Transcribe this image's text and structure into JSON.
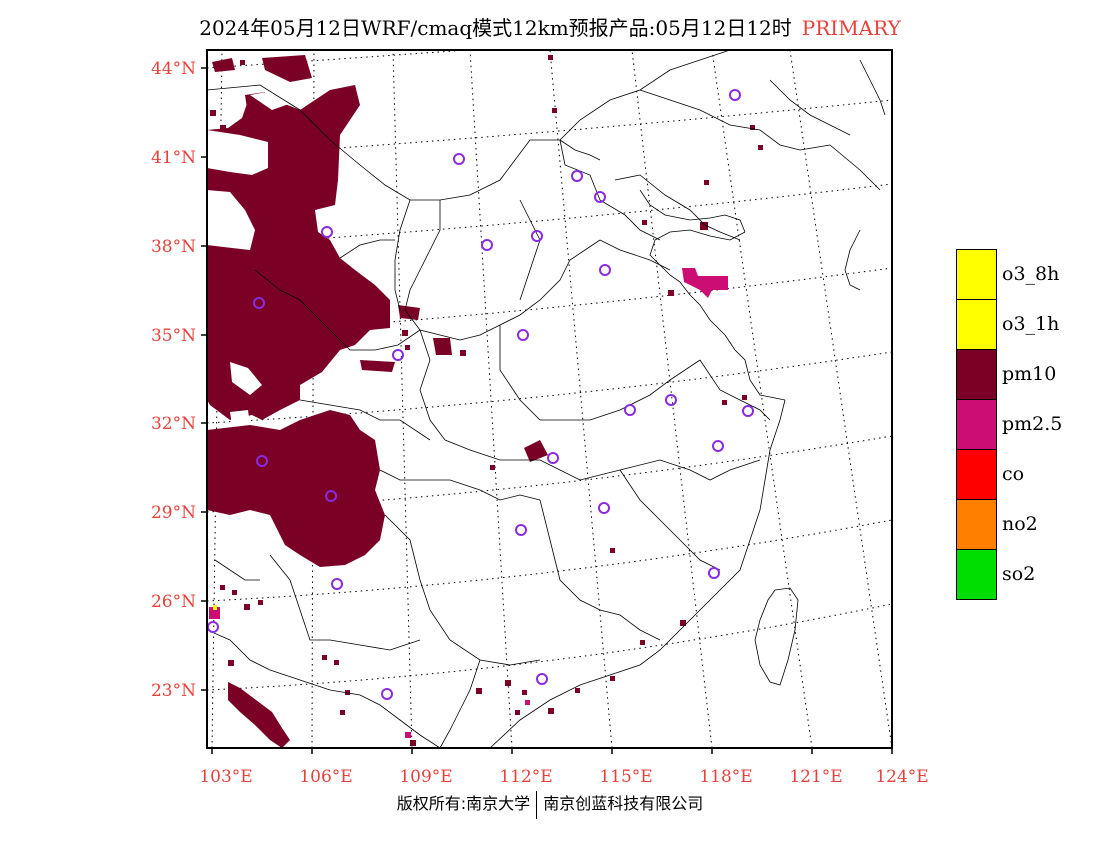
{
  "header": {
    "title": "2024年05月12日WRF/cmaq模式12km预报产品:05月12日12时",
    "tag": "PRIMARY"
  },
  "map": {
    "lat_labels": [
      "44°N",
      "41°N",
      "38°N",
      "35°N",
      "32°N",
      "29°N",
      "26°N",
      "23°N"
    ],
    "lon_labels": [
      "103°E",
      "106°E",
      "109°E",
      "112°E",
      "115°E",
      "118°E",
      "121°E",
      "124°E"
    ],
    "pollutant_color": "#7a0026",
    "pm25_color": "#cc0e74",
    "station_color": "#8a2be2"
  },
  "legend": {
    "items": [
      {
        "label": "o3_8h",
        "color": "#ffff00"
      },
      {
        "label": "o3_1h",
        "color": "#ffff00"
      },
      {
        "label": "pm10",
        "color": "#7a0026"
      },
      {
        "label": "pm2.5",
        "color": "#cc0e74"
      },
      {
        "label": "co",
        "color": "#ff0000"
      },
      {
        "label": "no2",
        "color": "#ff8000"
      },
      {
        "label": "so2",
        "color": "#00dd00"
      }
    ]
  },
  "footer": {
    "left": "版权所有:南京大学",
    "right": "南京创蓝科技有限公司"
  }
}
